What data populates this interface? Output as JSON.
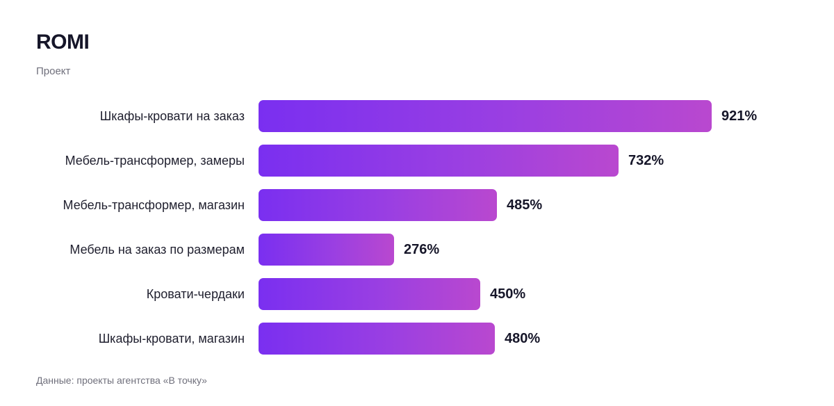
{
  "header": {
    "title": "ROMI",
    "subtitle": "Проект"
  },
  "footer": {
    "note": "Данные: проекты агентства «В точку»"
  },
  "colors": {
    "bar_start": "#7a2ff0",
    "bar_end": "#b948cf",
    "text": "#161629",
    "muted": "#6f6f7b"
  },
  "chart_data": {
    "type": "bar",
    "orientation": "horizontal",
    "title": "ROMI",
    "subtitle": "Проект",
    "categories": [
      "Шкафы-кровати на заказ",
      "Мебель-трансформер, замеры",
      "Мебель-трансформер, магазин",
      "Мебель на заказ по размерам",
      "Кровати-чердаки",
      "Шкафы-кровати, магазин"
    ],
    "values": [
      921,
      732,
      485,
      276,
      450,
      480
    ],
    "value_labels": [
      "921%",
      "732%",
      "485%",
      "276%",
      "450%",
      "480%"
    ],
    "unit": "%",
    "xlim": [
      0,
      921
    ],
    "grid": false,
    "legend": "none"
  }
}
